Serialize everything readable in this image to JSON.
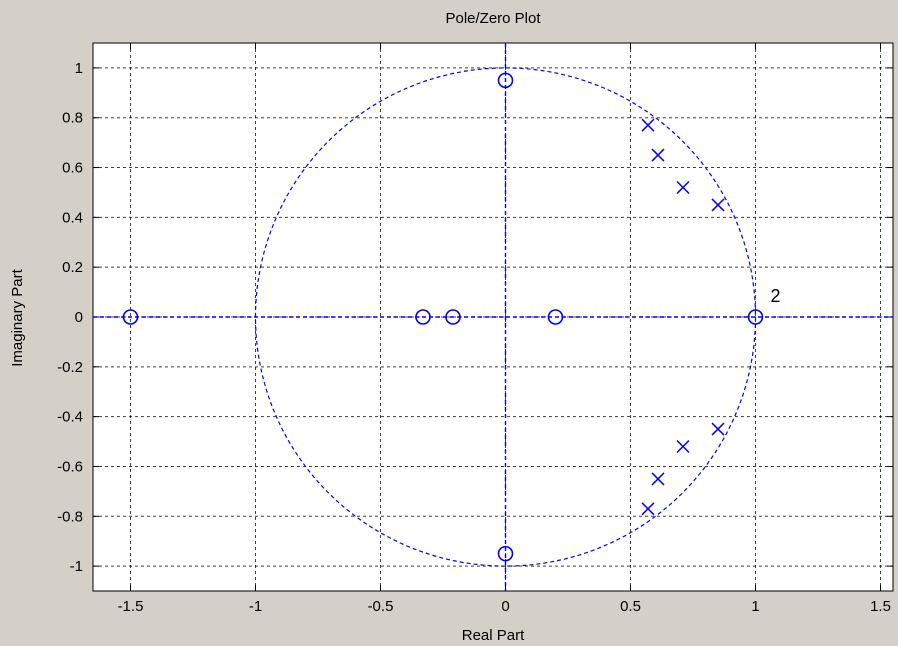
{
  "chart_data": {
    "type": "scatter",
    "title": "Pole/Zero Plot",
    "xlabel": "Real Part",
    "ylabel": "Imaginary Part",
    "xlim": [
      -1.65,
      1.55
    ],
    "ylim": [
      -1.1,
      1.1
    ],
    "xticks": [
      -1.5,
      -1,
      -0.5,
      0,
      0.5,
      1,
      1.5
    ],
    "xtick_labels": [
      "-1.5",
      "-1",
      "-0.5",
      "0",
      "0.5",
      "1",
      "1.5"
    ],
    "yticks": [
      1,
      0.8,
      0.6,
      0.4,
      0.2,
      0,
      -0.2,
      -0.4,
      -0.6,
      -0.8,
      -1
    ],
    "ytick_labels": [
      "1",
      "0.8",
      "0.6",
      "0.4",
      "0.2",
      "0",
      "-0.2",
      "-0.4",
      "-0.6",
      "-0.8",
      "-1"
    ],
    "grid": true,
    "unit_circle": true,
    "colors": {
      "marker": "#0000ff",
      "grid": "#000000",
      "plot_bg": "#ffffff",
      "figure_bg": "#d4d0c8"
    },
    "series": [
      {
        "marker": "o",
        "x": [
          0,
          0,
          -1.5,
          -0.33,
          -0.21,
          0.2,
          1
        ],
        "y": [
          0.95,
          -0.95,
          0,
          0,
          0,
          0,
          0
        ]
      },
      {
        "marker": "x",
        "x": [
          0.57,
          0.61,
          0.71,
          0.85,
          0.57,
          0.61,
          0.71,
          0.85
        ],
        "y": [
          0.77,
          0.65,
          0.52,
          0.45,
          -0.77,
          -0.65,
          -0.52,
          -0.45
        ]
      }
    ],
    "annotations": [
      {
        "text": "2",
        "x": 1.06,
        "y": 0.06
      }
    ]
  }
}
